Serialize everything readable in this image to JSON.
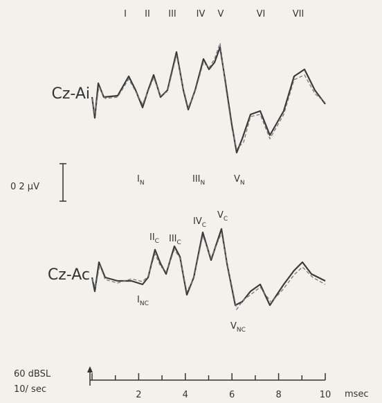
{
  "peak_labels_top": [
    "I",
    "II",
    "III",
    "IV",
    "V",
    "VI",
    "VII"
  ],
  "traces": [
    {
      "label": "Cz-Ai"
    },
    {
      "label": "Cz-Ac"
    }
  ],
  "scale_bar": "0 2 µV",
  "ipsi_labels": [
    {
      "base": "I",
      "sub": "N"
    },
    {
      "base": "III",
      "sub": "N"
    },
    {
      "base": "V",
      "sub": "N"
    }
  ],
  "contra_labels": [
    {
      "base": "II",
      "sub": "C"
    },
    {
      "base": "III",
      "sub": "C"
    },
    {
      "base": "IV",
      "sub": "C"
    },
    {
      "base": "V",
      "sub": "C"
    },
    {
      "base": "I",
      "sub": "NC"
    },
    {
      "base": "V",
      "sub": "NC"
    }
  ],
  "stimulus": [
    "60 dBSL",
    "10/ sec"
  ],
  "axis": {
    "ticks": [
      "2",
      "4",
      "6",
      "8",
      "10"
    ],
    "unit": "msec"
  }
}
